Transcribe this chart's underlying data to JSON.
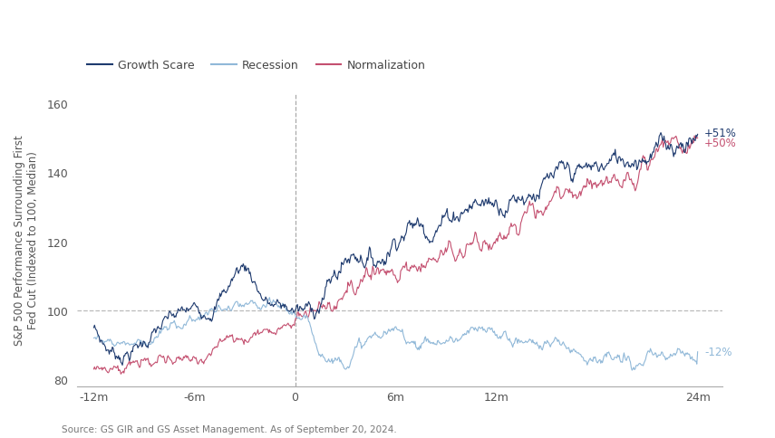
{
  "ylabel": "S&P 500 Performance Surrounding First\nFed Cut (Indexed to 100, Median)",
  "source": "Source: GS GIR and GS Asset Management. As of September 20, 2024.",
  "x_ticks": [
    -12,
    -6,
    0,
    6,
    12,
    24
  ],
  "x_tick_labels": [
    "-12m",
    "-6m",
    "0",
    "6m",
    "12m",
    "24m"
  ],
  "ylim": [
    78,
    163
  ],
  "xlim": [
    -13,
    25.5
  ],
  "yticks": [
    80,
    100,
    120,
    140,
    160
  ],
  "hline_y": 100,
  "vline_x": 0,
  "colors": {
    "growth_scare": "#1e3a6e",
    "recession": "#90b8d8",
    "normalization": "#c45070"
  },
  "end_labels": {
    "growth_scare": "+51%",
    "normalization": "+50%",
    "recession": "-12%"
  },
  "legend": {
    "labels": [
      "Growth Scare",
      "Recession",
      "Normalization"
    ],
    "colors": [
      "#1e3a6e",
      "#90b8d8",
      "#c45070"
    ]
  },
  "background_color": "#ffffff"
}
